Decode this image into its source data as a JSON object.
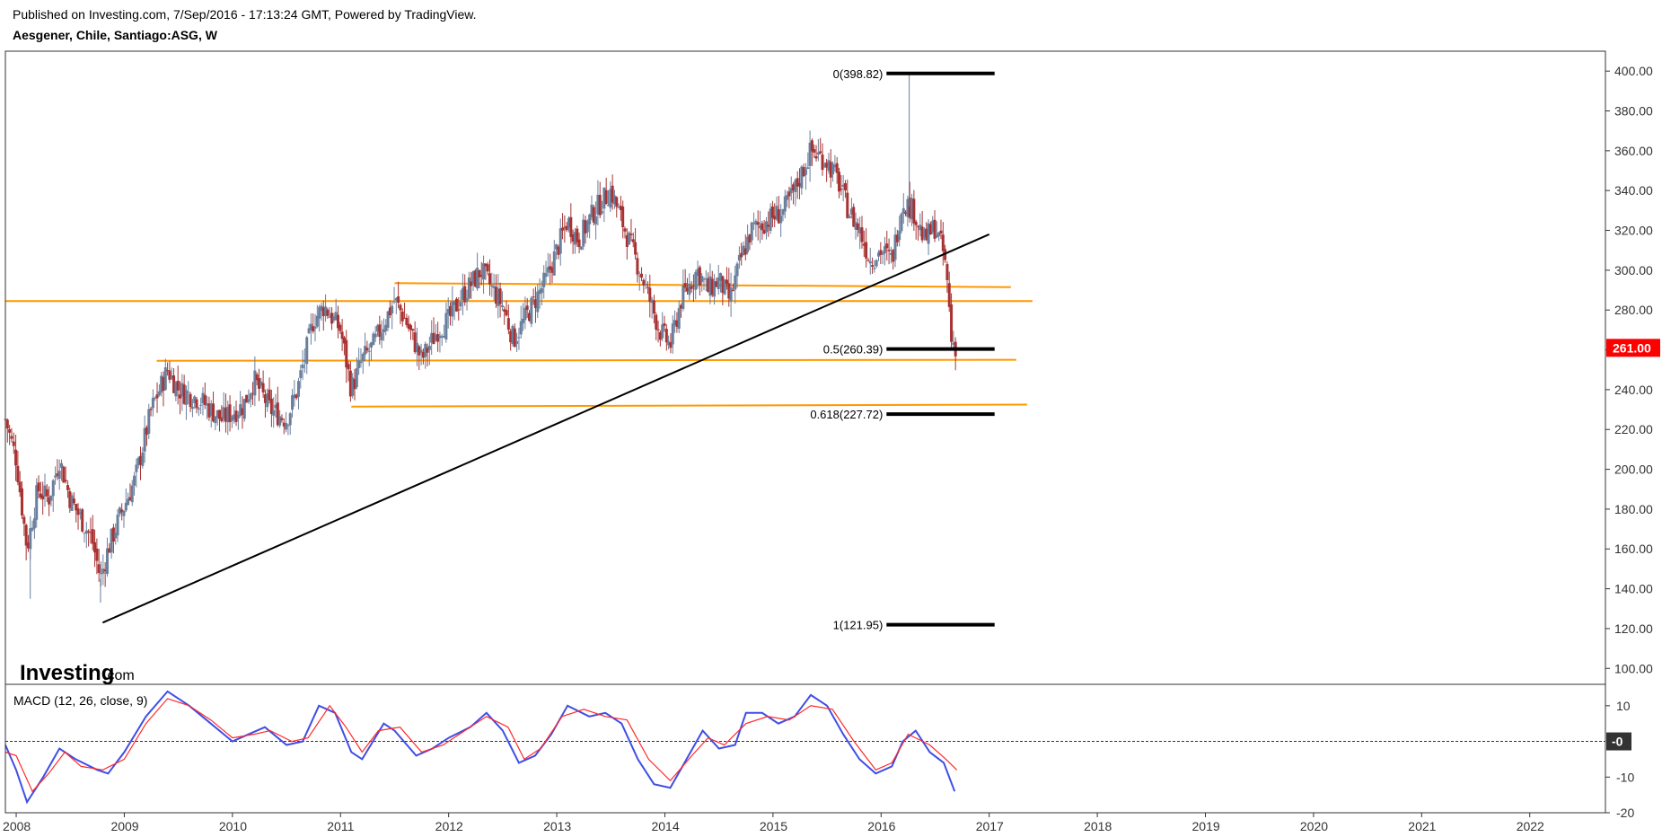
{
  "header": {
    "published": "Published on Investing.com, 7/Sep/2016 - 17:13:24 GMT, Powered by TradingView.",
    "symbol": "Aesgener, Chile, Santiago:ASG, W"
  },
  "logo": {
    "main": "Investing",
    "sub": ".com"
  },
  "colors": {
    "up": "#6a7f9c",
    "down": "#a83232",
    "support": "#ff9800",
    "trend": "#000000",
    "fib": "#000000",
    "macd": "#3f4ee6",
    "signal": "#ff2a2a",
    "price_badge": "#ff0000",
    "zero_badge": "#333333",
    "frame": "#333333"
  },
  "chart_data": [
    {
      "type": "candlestick",
      "title": "Aesgener, Chile, Santiago:ASG, W",
      "ylim": [
        92,
        410
      ],
      "xlim": [
        2007.9,
        2022.7
      ],
      "y_ticks": [
        "100.00",
        "120.00",
        "140.00",
        "160.00",
        "180.00",
        "200.00",
        "220.00",
        "240.00",
        "260.00",
        "280.00",
        "300.00",
        "320.00",
        "340.00",
        "360.00",
        "380.00",
        "400.00"
      ],
      "x_ticks": [
        "2008",
        "2009",
        "2010",
        "2011",
        "2012",
        "2013",
        "2014",
        "2015",
        "2016",
        "2017",
        "2018",
        "2019",
        "2020",
        "2021",
        "2022"
      ],
      "last_price": "261.00",
      "price_path": [
        [
          2007.9,
          225
        ],
        [
          2008.0,
          205
        ],
        [
          2008.1,
          160
        ],
        [
          2008.2,
          190
        ],
        [
          2008.3,
          185
        ],
        [
          2008.4,
          205
        ],
        [
          2008.5,
          185
        ],
        [
          2008.6,
          175
        ],
        [
          2008.7,
          165
        ],
        [
          2008.78,
          145
        ],
        [
          2008.85,
          160
        ],
        [
          2008.95,
          175
        ],
        [
          2009.1,
          195
        ],
        [
          2009.25,
          230
        ],
        [
          2009.4,
          250
        ],
        [
          2009.5,
          240
        ],
        [
          2009.7,
          235
        ],
        [
          2009.9,
          225
        ],
        [
          2010.1,
          232
        ],
        [
          2010.2,
          245
        ],
        [
          2010.35,
          230
        ],
        [
          2010.5,
          225
        ],
        [
          2010.6,
          240
        ],
        [
          2010.75,
          275
        ],
        [
          2010.85,
          282
        ],
        [
          2011.0,
          270
        ],
        [
          2011.1,
          240
        ],
        [
          2011.2,
          255
        ],
        [
          2011.3,
          262
        ],
        [
          2011.5,
          285
        ],
        [
          2011.6,
          275
        ],
        [
          2011.75,
          255
        ],
        [
          2011.9,
          270
        ],
        [
          2012.0,
          275
        ],
        [
          2012.1,
          285
        ],
        [
          2012.3,
          300
        ],
        [
          2012.5,
          282
        ],
        [
          2012.6,
          265
        ],
        [
          2012.75,
          280
        ],
        [
          2012.9,
          295
        ],
        [
          2013.0,
          310
        ],
        [
          2013.1,
          325
        ],
        [
          2013.2,
          315
        ],
        [
          2013.35,
          330
        ],
        [
          2013.5,
          340
        ],
        [
          2013.6,
          325
        ],
        [
          2013.7,
          310
        ],
        [
          2013.8,
          295
        ],
        [
          2013.95,
          270
        ],
        [
          2014.05,
          262
        ],
        [
          2014.15,
          285
        ],
        [
          2014.3,
          300
        ],
        [
          2014.4,
          290
        ],
        [
          2014.5,
          295
        ],
        [
          2014.6,
          285
        ],
        [
          2014.7,
          305
        ],
        [
          2014.8,
          320
        ],
        [
          2014.95,
          325
        ],
        [
          2015.1,
          330
        ],
        [
          2015.2,
          340
        ],
        [
          2015.35,
          360
        ],
        [
          2015.5,
          355
        ],
        [
          2015.6,
          345
        ],
        [
          2015.7,
          330
        ],
        [
          2015.8,
          320
        ],
        [
          2015.9,
          305
        ],
        [
          2016.0,
          310
        ],
        [
          2016.1,
          305
        ],
        [
          2016.2,
          335
        ],
        [
          2016.3,
          330
        ],
        [
          2016.4,
          315
        ],
        [
          2016.5,
          322
        ],
        [
          2016.58,
          308
        ],
        [
          2016.62,
          290
        ],
        [
          2016.65,
          265
        ],
        [
          2016.7,
          261
        ]
      ],
      "wick_extremes": [
        {
          "x": 2008.13,
          "low": 135
        },
        {
          "x": 2008.78,
          "low": 133
        },
        {
          "x": 2016.26,
          "high": 398.82
        }
      ],
      "support_lines": [
        {
          "x0": 2011.5,
          "y0": 293.5,
          "x1": 2017.2,
          "y1": 291.5
        },
        {
          "x0": 2007.9,
          "y0": 284.5,
          "x1": 2017.4,
          "y1": 284.5
        },
        {
          "x0": 2009.3,
          "y0": 254.5,
          "x1": 2017.25,
          "y1": 255
        },
        {
          "x0": 2011.1,
          "y0": 231.5,
          "x1": 2017.35,
          "y1": 232.5
        }
      ],
      "trendline": {
        "x0": 2008.8,
        "y0": 123,
        "x1": 2017.0,
        "y1": 318
      },
      "fib_levels": [
        {
          "label": "0(398.82)",
          "value": 398.82
        },
        {
          "label": "0.5(260.39)",
          "value": 260.39
        },
        {
          "label": "0.618(227.72)",
          "value": 227.72
        },
        {
          "label": "1(121.95)",
          "value": 121.95
        }
      ],
      "fib_x": [
        2016.05,
        2017.05
      ]
    },
    {
      "type": "line",
      "title": "MACD (12, 26, close, 9)",
      "ylim": [
        -20,
        16
      ],
      "y_ticks": [
        "10",
        "-10",
        "-20"
      ],
      "zero_label": "-0",
      "series": [
        {
          "name": "MACD",
          "points": [
            [
              2007.9,
              -1
            ],
            [
              2008.0,
              -8
            ],
            [
              2008.1,
              -17
            ],
            [
              2008.25,
              -10
            ],
            [
              2008.4,
              -2
            ],
            [
              2008.55,
              -5
            ],
            [
              2008.75,
              -8
            ],
            [
              2008.85,
              -9
            ],
            [
              2009.0,
              -3
            ],
            [
              2009.2,
              7
            ],
            [
              2009.4,
              14
            ],
            [
              2009.6,
              10
            ],
            [
              2009.8,
              5
            ],
            [
              2010.0,
              0
            ],
            [
              2010.15,
              2
            ],
            [
              2010.3,
              4
            ],
            [
              2010.5,
              -1
            ],
            [
              2010.65,
              0
            ],
            [
              2010.8,
              10
            ],
            [
              2010.95,
              8
            ],
            [
              2011.1,
              -3
            ],
            [
              2011.2,
              -5
            ],
            [
              2011.4,
              5
            ],
            [
              2011.5,
              3
            ],
            [
              2011.7,
              -4
            ],
            [
              2011.85,
              -2
            ],
            [
              2012.0,
              1
            ],
            [
              2012.2,
              4
            ],
            [
              2012.35,
              8
            ],
            [
              2012.5,
              3
            ],
            [
              2012.65,
              -6
            ],
            [
              2012.8,
              -4
            ],
            [
              2012.95,
              2
            ],
            [
              2013.1,
              10
            ],
            [
              2013.3,
              7
            ],
            [
              2013.45,
              8
            ],
            [
              2013.6,
              5
            ],
            [
              2013.75,
              -5
            ],
            [
              2013.9,
              -12
            ],
            [
              2014.05,
              -13
            ],
            [
              2014.2,
              -5
            ],
            [
              2014.35,
              3
            ],
            [
              2014.5,
              -2
            ],
            [
              2014.65,
              -1
            ],
            [
              2014.75,
              8
            ],
            [
              2014.9,
              8
            ],
            [
              2015.05,
              5
            ],
            [
              2015.2,
              7
            ],
            [
              2015.35,
              13
            ],
            [
              2015.5,
              10
            ],
            [
              2015.65,
              2
            ],
            [
              2015.8,
              -5
            ],
            [
              2015.95,
              -9
            ],
            [
              2016.1,
              -7
            ],
            [
              2016.2,
              0
            ],
            [
              2016.32,
              3
            ],
            [
              2016.45,
              -3
            ],
            [
              2016.58,
              -6
            ],
            [
              2016.68,
              -14
            ]
          ]
        },
        {
          "name": "Signal",
          "points": [
            [
              2007.9,
              -3
            ],
            [
              2008.0,
              -4
            ],
            [
              2008.15,
              -14
            ],
            [
              2008.3,
              -9
            ],
            [
              2008.45,
              -3
            ],
            [
              2008.6,
              -7
            ],
            [
              2008.8,
              -8
            ],
            [
              2009.0,
              -5
            ],
            [
              2009.2,
              5
            ],
            [
              2009.4,
              12
            ],
            [
              2009.6,
              10
            ],
            [
              2009.8,
              6
            ],
            [
              2010.0,
              1
            ],
            [
              2010.2,
              2
            ],
            [
              2010.35,
              3
            ],
            [
              2010.55,
              0
            ],
            [
              2010.7,
              1
            ],
            [
              2010.9,
              10
            ],
            [
              2011.05,
              4
            ],
            [
              2011.2,
              -3
            ],
            [
              2011.35,
              3
            ],
            [
              2011.55,
              4
            ],
            [
              2011.75,
              -3
            ],
            [
              2011.95,
              -1
            ],
            [
              2012.15,
              3
            ],
            [
              2012.35,
              7
            ],
            [
              2012.55,
              4
            ],
            [
              2012.7,
              -5
            ],
            [
              2012.85,
              -2
            ],
            [
              2013.05,
              7
            ],
            [
              2013.25,
              9
            ],
            [
              2013.45,
              7
            ],
            [
              2013.65,
              6
            ],
            [
              2013.85,
              -5
            ],
            [
              2014.05,
              -11
            ],
            [
              2014.25,
              -4
            ],
            [
              2014.4,
              1
            ],
            [
              2014.55,
              -1
            ],
            [
              2014.75,
              5
            ],
            [
              2014.95,
              7
            ],
            [
              2015.15,
              6
            ],
            [
              2015.35,
              10
            ],
            [
              2015.55,
              9
            ],
            [
              2015.75,
              0
            ],
            [
              2015.95,
              -8
            ],
            [
              2016.1,
              -6
            ],
            [
              2016.25,
              2
            ],
            [
              2016.45,
              -1
            ],
            [
              2016.6,
              -5
            ],
            [
              2016.7,
              -8
            ]
          ]
        }
      ]
    }
  ]
}
